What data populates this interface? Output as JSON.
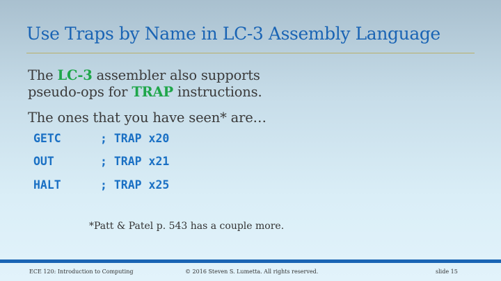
{
  "title": "Use Traps by Name in LC-3 Assembly Language",
  "para1": {
    "line1_a": "The ",
    "line1_hl": "LC-3",
    "line1_b": " assembler also supports",
    "line2_a": "pseudo-ops for ",
    "line2_hl": "TRAP",
    "line2_b": " instructions."
  },
  "para2": "The ones that you have seen* are…",
  "code_lines": [
    {
      "op": "GETC",
      "comment": "; TRAP x20"
    },
    {
      "op": "OUT",
      "comment": "; TRAP x21"
    },
    {
      "op": "HALT",
      "comment": "; TRAP x25"
    }
  ],
  "footnote": "*Patt & Patel p. 543 has a couple more.",
  "footer": {
    "course": "ECE 120: Introduction to Computing",
    "copyright": "© 2016 Steven S. Lumetta.  All rights reserved.",
    "slide": "slide 15"
  },
  "colors": {
    "title": "#1a64b4",
    "highlight": "#1fa64a",
    "code": "#1a70c4",
    "rule": "#b8b06a",
    "footer_band": "#1a64b4"
  }
}
